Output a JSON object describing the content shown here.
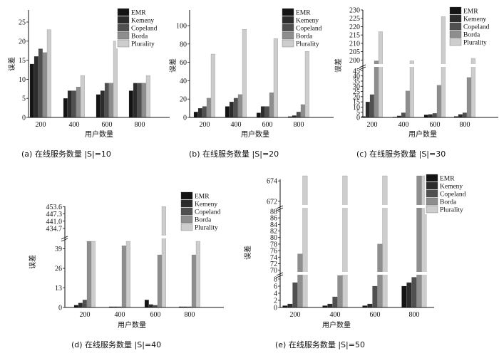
{
  "colors": {
    "EMR": "#141414",
    "Kemeny": "#2c2c2c",
    "Copeland": "#505050",
    "Borda": "#8e8e8e",
    "Plurality": "#cdcdcd"
  },
  "chart_data": [
    {
      "type": "bar",
      "caption": "(a) 在线服务数量 |S|=10",
      "xlabel": "用户数量",
      "ylabel": "误差",
      "categories": [
        "200",
        "400",
        "600",
        "800"
      ],
      "yticks": [
        "0",
        "5",
        "10",
        "15",
        "20",
        "25"
      ],
      "ylim": [
        0,
        25
      ],
      "axis_break": false,
      "series": [
        {
          "name": "EMR",
          "values": [
            14,
            5,
            6,
            7
          ]
        },
        {
          "name": "Kemeny",
          "values": [
            16,
            7,
            7,
            9
          ]
        },
        {
          "name": "Copeland",
          "values": [
            18,
            7,
            9,
            9
          ]
        },
        {
          "name": "Borda",
          "values": [
            17,
            8,
            9,
            9
          ]
        },
        {
          "name": "Plurality",
          "values": [
            23,
            11,
            20,
            11
          ]
        }
      ]
    },
    {
      "type": "bar",
      "caption": "(b) 在线服务数量 |S|=20",
      "xlabel": "用户数量",
      "ylabel": "误差",
      "categories": [
        "200",
        "400",
        "600",
        "800"
      ],
      "yticks": [
        "0",
        "20",
        "40",
        "60",
        "80",
        "100"
      ],
      "ylim": [
        0,
        100
      ],
      "axis_break": false,
      "series": [
        {
          "name": "EMR",
          "values": [
            6,
            12,
            5,
            1
          ]
        },
        {
          "name": "Kemeny",
          "values": [
            10,
            17,
            12,
            2
          ]
        },
        {
          "name": "Copeland",
          "values": [
            12,
            21,
            12,
            6
          ]
        },
        {
          "name": "Borda",
          "values": [
            21,
            25,
            27,
            14
          ]
        },
        {
          "name": "Plurality",
          "values": [
            69,
            96,
            86,
            72
          ]
        }
      ]
    },
    {
      "type": "bar",
      "caption": "(c) 在线服务数量 |S|=30",
      "xlabel": "用户数量",
      "ylabel": "误差",
      "categories": [
        "200",
        "400",
        "600",
        "800"
      ],
      "yticks": [
        "0",
        "5",
        "10",
        "15",
        "20",
        "25",
        "30",
        "35",
        "40",
        "45",
        "200",
        "205",
        "210",
        "215",
        "220",
        "225",
        "230"
      ],
      "ylim_lower": [
        0,
        48
      ],
      "ylim_upper": [
        198,
        230
      ],
      "axis_break": true,
      "series": [
        {
          "name": "EMR",
          "values": [
            1,
            0.5,
            2.5,
            1
          ]
        },
        {
          "name": "Kemeny",
          "values": [
            15,
            1.5,
            3,
            3
          ]
        },
        {
          "name": "Copeland",
          "values": [
            22,
            4.5,
            4,
            4.5
          ]
        },
        {
          "name": "Borda",
          "values": [
            199.5,
            25.5,
            31,
            38.5
          ]
        },
        {
          "name": "Plurality",
          "values": [
            217,
            199.5,
            226,
            201
          ]
        }
      ]
    },
    {
      "type": "bar",
      "caption": "(d) 在线服务数量 |S|=40",
      "xlabel": "用户数量",
      "ylabel": "误差",
      "categories": [
        "200",
        "400",
        "600",
        "800"
      ],
      "yticks": [
        "0",
        "13",
        "26",
        "39",
        "434.7",
        "441.0",
        "447.3",
        "453.6"
      ],
      "ylim_lower": [
        0,
        44
      ],
      "ylim_upper": [
        431,
        455
      ],
      "axis_break": true,
      "series": [
        {
          "name": "EMR",
          "values": [
            1.5,
            0.5,
            5,
            0.5
          ]
        },
        {
          "name": "Kemeny",
          "values": [
            3,
            0.5,
            2,
            0.5
          ]
        },
        {
          "name": "Copeland",
          "values": [
            5,
            0.5,
            1.5,
            0.5
          ]
        },
        {
          "name": "Borda",
          "values": [
            44,
            41,
            35,
            35
          ]
        },
        {
          "name": "Plurality",
          "values": [
            44,
            44,
            453.6,
            44
          ]
        }
      ]
    },
    {
      "type": "bar",
      "caption": "(e) 在线服务数量 |S|=50",
      "xlabel": "用户数量",
      "ylabel": "误差",
      "categories": [
        "200",
        "400",
        "600",
        "800"
      ],
      "yticks": [
        "0",
        "2",
        "4",
        "6",
        "8",
        "70",
        "72",
        "74",
        "76",
        "78",
        "80",
        "82",
        "84",
        "86",
        "88",
        "672",
        "674"
      ],
      "ylim_lower": [
        0,
        9
      ],
      "ylim_mid": [
        69.5,
        89.5
      ],
      "ylim_upper": [
        671.5,
        674.5
      ],
      "axis_break": true,
      "series": [
        {
          "name": "EMR",
          "values": [
            0.5,
            0.5,
            0.5,
            6
          ]
        },
        {
          "name": "Kemeny",
          "values": [
            1,
            1,
            1,
            7
          ]
        },
        {
          "name": "Copeland",
          "values": [
            7,
            3,
            6,
            8.5
          ]
        },
        {
          "name": "Borda",
          "values": [
            75,
            9.5,
            78,
            674.5
          ]
        },
        {
          "name": "Plurality",
          "values": [
            674.5,
            674.5,
            674.5,
            674.5
          ]
        }
      ]
    }
  ]
}
